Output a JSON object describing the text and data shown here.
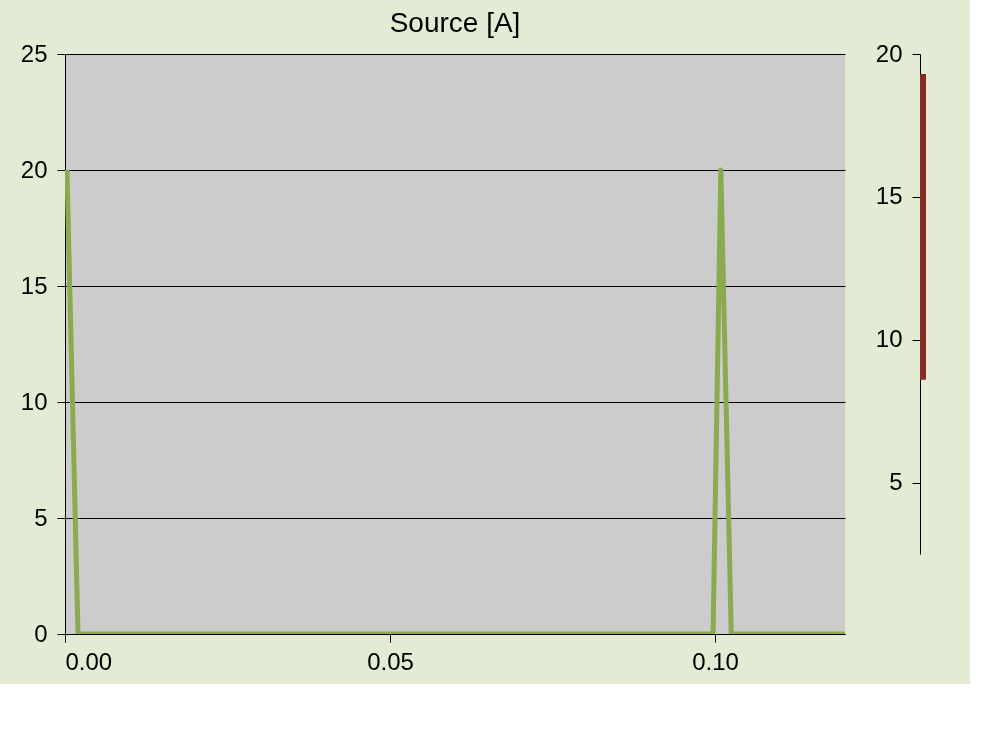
{
  "chart_data": [
    {
      "type": "line",
      "title": "Source [A]",
      "x": [
        0.0003,
        0.002,
        0.0997,
        0.1009,
        0.1025,
        0.12
      ],
      "series": [
        {
          "color": "#8aaa50",
          "values": [
            20,
            0,
            0,
            20,
            0,
            0
          ]
        }
      ],
      "xlim": [
        0,
        0.12
      ],
      "xticks": [
        {
          "value": 0,
          "label": "0.00"
        },
        {
          "value": 0.05,
          "label": "0.05"
        },
        {
          "value": 0.1,
          "label": "0.10"
        }
      ],
      "ylim": [
        0,
        25
      ],
      "yticks": [
        0,
        5,
        10,
        15,
        20,
        25
      ],
      "grid": "y"
    },
    {
      "type": "bar",
      "categories": [
        null
      ],
      "base": [
        8.6
      ],
      "color": "#8b2a22",
      "values": [
        10.7
      ],
      "ylim": [
        2.5,
        20
      ],
      "yticks": [
        5,
        10,
        15,
        20
      ],
      "tick_labels": "y"
    }
  ]
}
